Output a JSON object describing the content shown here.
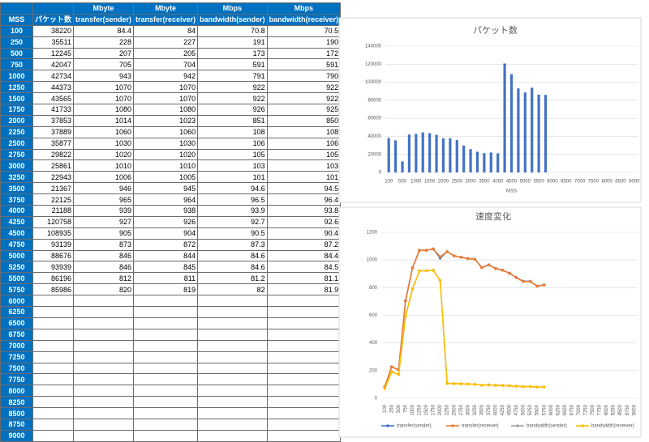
{
  "table": {
    "units": [
      "Mbyte",
      "Mbyte",
      "Mbps",
      "Mbps"
    ],
    "header": [
      "MSS",
      "パケット数",
      "transfer(sender)",
      "transfer(receiver)",
      "bandwidth(sender)",
      "bandwidth(receiver)"
    ],
    "rows": [
      [
        100,
        38220,
        84.4,
        84,
        70.8,
        70.5
      ],
      [
        250,
        35511,
        228,
        227,
        191,
        190
      ],
      [
        500,
        12245,
        207,
        205,
        173,
        172
      ],
      [
        750,
        42047,
        705,
        704,
        591,
        591
      ],
      [
        1000,
        42734,
        943,
        942,
        791,
        790
      ],
      [
        1250,
        44373,
        1070,
        1070,
        922,
        922
      ],
      [
        1500,
        43565,
        1070,
        1070,
        922,
        922
      ],
      [
        1750,
        41733,
        1080,
        1080,
        926,
        925
      ],
      [
        2000,
        37853,
        1014,
        1023,
        851,
        850
      ],
      [
        2250,
        37889,
        1060,
        1060,
        108,
        108
      ],
      [
        2500,
        35877,
        1030,
        1030,
        106,
        106
      ],
      [
        2750,
        29822,
        1020,
        1020,
        105,
        105
      ],
      [
        3000,
        25861,
        1010,
        1010,
        103,
        103
      ],
      [
        3250,
        22943,
        1006,
        1005,
        101,
        101
      ],
      [
        3500,
        21367,
        946,
        945,
        94.6,
        94.5
      ],
      [
        3750,
        22125,
        965,
        964,
        96.5,
        96.4
      ],
      [
        4000,
        21188,
        939,
        938,
        93.9,
        93.8
      ],
      [
        4250,
        120758,
        927,
        926,
        92.7,
        92.6
      ],
      [
        4500,
        108935,
        905,
        904,
        90.5,
        90.4
      ],
      [
        4750,
        93139,
        873,
        872,
        87.3,
        87.2
      ],
      [
        5000,
        88676,
        846,
        844,
        84.6,
        84.4
      ],
      [
        5250,
        93939,
        846,
        845,
        84.6,
        84.5
      ],
      [
        5500,
        86196,
        812,
        811,
        81.2,
        81.1
      ],
      [
        5750,
        85986,
        820,
        819,
        82,
        81.9
      ],
      [
        6000
      ],
      [
        6250
      ],
      [
        6500
      ],
      [
        6750
      ],
      [
        7000
      ],
      [
        7250
      ],
      [
        7500
      ],
      [
        7750
      ],
      [
        8000
      ],
      [
        8250
      ],
      [
        8500
      ],
      [
        8750
      ],
      [
        9000
      ]
    ]
  },
  "chart_data": [
    {
      "type": "bar",
      "title": "パケット数",
      "xlabel": "MSS",
      "color": "#4472c4",
      "categories": [
        100,
        null,
        500,
        null,
        1000,
        null,
        1500,
        null,
        2000,
        null,
        2500,
        null,
        3000,
        null,
        3500,
        null,
        4000,
        null,
        4500,
        null,
        5000,
        null,
        5500,
        null,
        6000,
        null,
        6500,
        null,
        7000,
        null,
        7500,
        null,
        8000,
        null,
        8500,
        null,
        9000
      ],
      "values": [
        38220,
        35511,
        12245,
        42047,
        42734,
        44373,
        43565,
        41733,
        37853,
        37889,
        35877,
        29822,
        25861,
        22943,
        21367,
        22125,
        21188,
        120758,
        108935,
        93139,
        88676,
        93939,
        86196,
        85986,
        null,
        null,
        null,
        null,
        null,
        null,
        null,
        null,
        null,
        null,
        null,
        null,
        null
      ],
      "ylim": [
        0,
        140000
      ],
      "yticks": [
        0,
        20000,
        40000,
        60000,
        80000,
        100000,
        120000,
        140000
      ]
    },
    {
      "type": "line",
      "title": "速度変化",
      "legend": "bottom",
      "categories": [
        100,
        250,
        500,
        750,
        1000,
        1250,
        1500,
        1750,
        2000,
        2250,
        2500,
        2750,
        3000,
        3250,
        3500,
        3750,
        4000,
        4250,
        4500,
        4750,
        5000,
        5250,
        5500,
        5750,
        6000,
        6250,
        6500,
        6750,
        7000,
        7250,
        7500,
        7750,
        8000,
        8250,
        8500,
        8750,
        9000
      ],
      "ylim": [
        0,
        1200
      ],
      "yticks": [
        0,
        200,
        400,
        600,
        800,
        1000,
        1200
      ],
      "series": [
        {
          "name": "transfer(sender)",
          "color": "#4472c4",
          "values": [
            84.4,
            228,
            207,
            705,
            943,
            1070,
            1070,
            1080,
            1014,
            1060,
            1030,
            1020,
            1010,
            1006,
            946,
            965,
            939,
            927,
            905,
            873,
            846,
            846,
            812,
            820,
            null,
            null,
            null,
            null,
            null,
            null,
            null,
            null,
            null,
            null,
            null,
            null,
            null
          ]
        },
        {
          "name": "transfer(receiver)",
          "color": "#ed7d31",
          "values": [
            84,
            227,
            205,
            704,
            942,
            1070,
            1070,
            1080,
            1023,
            1060,
            1030,
            1020,
            1010,
            1005,
            945,
            964,
            938,
            926,
            904,
            872,
            844,
            845,
            811,
            819,
            null,
            null,
            null,
            null,
            null,
            null,
            null,
            null,
            null,
            null,
            null,
            null,
            null
          ]
        },
        {
          "name": "bandwidth(sender)",
          "color": "#a5a5a5",
          "values": [
            70.8,
            191,
            173,
            591,
            791,
            922,
            922,
            926,
            851,
            108,
            106,
            105,
            103,
            101,
            94.6,
            96.5,
            93.9,
            92.7,
            90.5,
            87.3,
            84.6,
            84.6,
            81.2,
            82,
            null,
            null,
            null,
            null,
            null,
            null,
            null,
            null,
            null,
            null,
            null,
            null,
            null
          ]
        },
        {
          "name": "bandwidth(receiver)",
          "color": "#ffc000",
          "values": [
            70.5,
            190,
            172,
            591,
            790,
            922,
            922,
            925,
            850,
            108,
            106,
            105,
            103,
            101,
            94.5,
            96.4,
            93.8,
            92.6,
            90.4,
            87.2,
            84.4,
            84.5,
            81.1,
            81.9,
            null,
            null,
            null,
            null,
            null,
            null,
            null,
            null,
            null,
            null,
            null,
            null,
            null
          ]
        }
      ]
    }
  ]
}
